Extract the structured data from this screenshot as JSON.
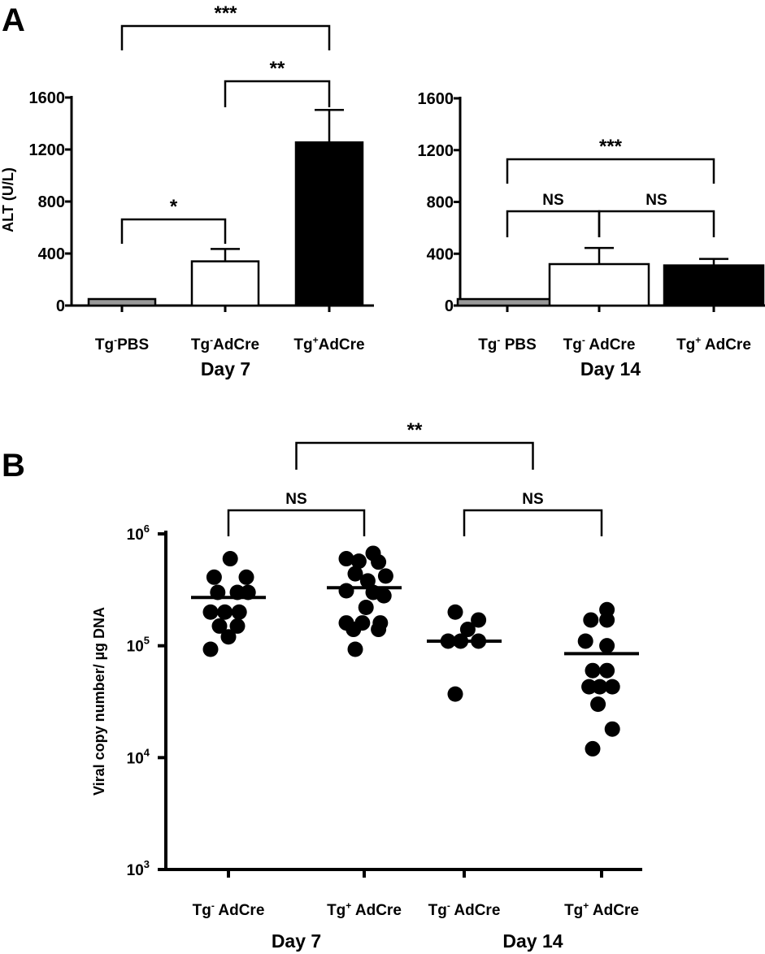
{
  "figure": {
    "panel_labels": {
      "a": "A",
      "b": "B"
    }
  },
  "chart_data": [
    {
      "id": "day7",
      "panel": "A",
      "type": "bar",
      "ylabel": "ALT (U/L)",
      "group_label": "Day 7",
      "ylim": [
        0,
        1600
      ],
      "yticks": [
        "0",
        "400",
        "800",
        "1200",
        "1600"
      ],
      "categories": [
        {
          "base": "Tg",
          "sup": "-",
          "rest": "PBS"
        },
        {
          "base": "Tg",
          "sup": "-",
          "rest": "AdCre"
        },
        {
          "base": "Tg",
          "sup": "+",
          "rest": "AdCre"
        }
      ],
      "values": [
        50,
        340,
        1255
      ],
      "errors": [
        0,
        95,
        250
      ],
      "bar_colors": [
        "#999999",
        "#ffffff",
        "#000000"
      ],
      "significance": [
        {
          "from": 0,
          "to": 1,
          "label": "*"
        },
        {
          "from": 1,
          "to": 2,
          "label": "**"
        },
        {
          "from": 0,
          "to": 2,
          "label": "***"
        }
      ]
    },
    {
      "id": "day14",
      "panel": "A",
      "type": "bar",
      "ylabel": "",
      "group_label": "Day 14",
      "ylim": [
        0,
        1600
      ],
      "yticks": [
        "0",
        "400",
        "800",
        "1200",
        "1600"
      ],
      "categories": [
        {
          "base": "Tg",
          "sup": "-",
          "rest": " PBS"
        },
        {
          "base": "Tg",
          "sup": "-",
          "rest": " AdCre"
        },
        {
          "base": "Tg",
          "sup": "+",
          "rest": " AdCre"
        }
      ],
      "values": [
        50,
        320,
        310
      ],
      "errors": [
        0,
        125,
        50
      ],
      "bar_colors": [
        "#999999",
        "#ffffff",
        "#000000"
      ],
      "significance": [
        {
          "from": 0,
          "to": 1,
          "label": "NS"
        },
        {
          "from": 1,
          "to": 2,
          "label": "NS"
        },
        {
          "from": 0,
          "to": 2,
          "label": "***"
        }
      ]
    },
    {
      "id": "viral",
      "panel": "B",
      "type": "scatter",
      "ylabel": "Viral copy number/ µg DNA",
      "yscale": "log",
      "ylim": [
        1000,
        1000000
      ],
      "yticks": [
        {
          "base": "10",
          "exp": "3"
        },
        {
          "base": "10",
          "exp": "4"
        },
        {
          "base": "10",
          "exp": "5"
        },
        {
          "base": "10",
          "exp": "6"
        }
      ],
      "categories": [
        {
          "base": "Tg",
          "sup": "-",
          "rest": " AdCre"
        },
        {
          "base": "Tg",
          "sup": "+",
          "rest": " AdCre"
        },
        {
          "base": "Tg",
          "sup": "-",
          "rest": " AdCre"
        },
        {
          "base": "Tg",
          "sup": "+",
          "rest": " AdCre"
        }
      ],
      "group_labels": [
        {
          "label": "Day 7",
          "over": [
            0,
            1
          ]
        },
        {
          "label": "Day 14",
          "over": [
            2,
            3
          ]
        }
      ],
      "series": [
        {
          "means": 270000,
          "points": [
            [
              -0.8,
              410000
            ],
            [
              0.1,
              600000
            ],
            [
              1.0,
              410000
            ],
            [
              -0.6,
              300000
            ],
            [
              0.5,
              300000
            ],
            [
              1.1,
              300000
            ],
            [
              -1.0,
              200000
            ],
            [
              -0.2,
              200000
            ],
            [
              0.6,
              200000
            ],
            [
              -0.5,
              150000
            ],
            [
              0.5,
              150000
            ],
            [
              0.0,
              120000
            ],
            [
              -1.0,
              93000
            ]
          ]
        },
        {
          "means": 330000,
          "points": [
            [
              -1.0,
              600000
            ],
            [
              0.5,
              670000
            ],
            [
              -0.3,
              570000
            ],
            [
              0.8,
              560000
            ],
            [
              -0.5,
              440000
            ],
            [
              1.2,
              420000
            ],
            [
              0.2,
              380000
            ],
            [
              -1.0,
              310000
            ],
            [
              0.5,
              300000
            ],
            [
              1.1,
              280000
            ],
            [
              0.1,
              220000
            ],
            [
              -1.0,
              160000
            ],
            [
              -0.1,
              160000
            ],
            [
              0.9,
              160000
            ],
            [
              -0.6,
              140000
            ],
            [
              0.8,
              140000
            ],
            [
              -0.5,
              93000
            ]
          ]
        },
        {
          "means": 110000,
          "points": [
            [
              -0.5,
              200000
            ],
            [
              0.8,
              170000
            ],
            [
              0.2,
              140000
            ],
            [
              -0.9,
              110000
            ],
            [
              -0.2,
              110000
            ],
            [
              0.8,
              110000
            ],
            [
              -0.5,
              37000
            ]
          ]
        },
        {
          "means": 85000,
          "points": [
            [
              0.3,
              210000
            ],
            [
              -0.6,
              170000
            ],
            [
              0.3,
              170000
            ],
            [
              -0.9,
              110000
            ],
            [
              0.3,
              100000
            ],
            [
              -0.5,
              60000
            ],
            [
              0.3,
              60000
            ],
            [
              -0.7,
              43000
            ],
            [
              -0.1,
              43000
            ],
            [
              0.6,
              43000
            ],
            [
              -0.2,
              30000
            ],
            [
              0.6,
              18000
            ],
            [
              -0.5,
              12000
            ]
          ]
        }
      ],
      "significance": [
        {
          "from": 0,
          "to": 1,
          "label": "NS"
        },
        {
          "from": 2,
          "to": 3,
          "label": "NS"
        },
        {
          "from": 0.5,
          "to": 2.5,
          "label": "**"
        }
      ]
    }
  ]
}
